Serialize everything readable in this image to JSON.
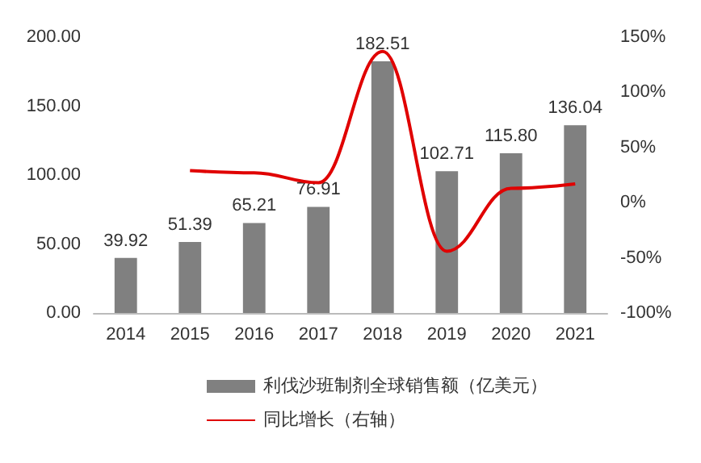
{
  "chart_data": {
    "type": "bar",
    "categories": [
      "2014",
      "2015",
      "2016",
      "2017",
      "2018",
      "2019",
      "2020",
      "2021"
    ],
    "series": [
      {
        "name": "利伐沙班制剂全球销售额（亿美元）",
        "color": "#808080",
        "values": [
          39.92,
          51.39,
          65.21,
          76.91,
          182.51,
          102.71,
          115.8,
          136.04
        ],
        "value_labels": [
          "39.92",
          "51.39",
          "65.21",
          "76.91",
          "182.51",
          "102.71",
          "115.80",
          "136.04"
        ]
      },
      {
        "name": "同比增长（右轴）",
        "type": "line",
        "axis": "y2",
        "color": "#e00000",
        "values": [
          null,
          29,
          27,
          18,
          137,
          -44,
          13,
          17
        ]
      }
    ],
    "ylim": [
      0,
      200
    ],
    "yticks": [
      {
        "value": 0,
        "label": "0.00"
      },
      {
        "value": 50,
        "label": "50.00"
      },
      {
        "value": 100,
        "label": "100.00"
      },
      {
        "value": 150,
        "label": "150.00"
      },
      {
        "value": 200,
        "label": "200.00"
      }
    ],
    "y2lim": [
      -100,
      150
    ],
    "y2ticks": [
      {
        "value": -100,
        "label": "-100%"
      },
      {
        "value": -50,
        "label": "-50%"
      },
      {
        "value": 0,
        "label": "0%"
      },
      {
        "value": 50,
        "label": "50%"
      },
      {
        "value": 100,
        "label": "100%"
      },
      {
        "value": 150,
        "label": "150%"
      }
    ],
    "legend": "bottom",
    "grid": false,
    "marker": "none"
  }
}
